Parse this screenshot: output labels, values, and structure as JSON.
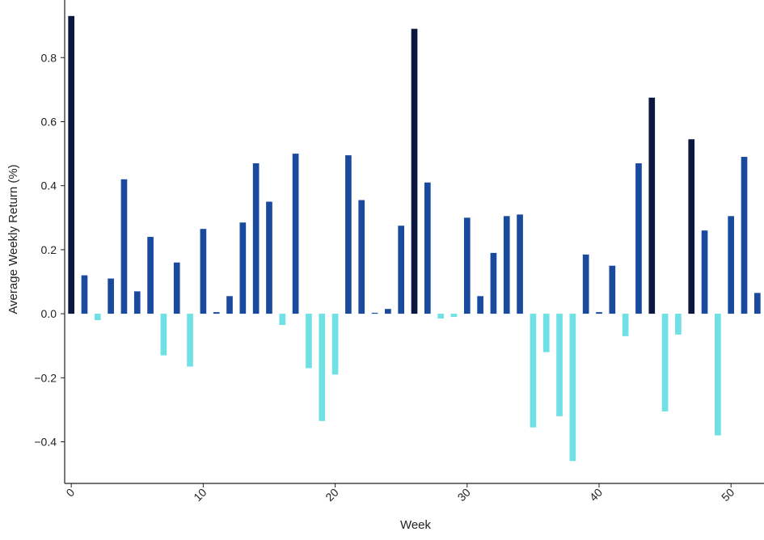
{
  "chart_data": {
    "type": "bar",
    "title": "",
    "xlabel": "Week",
    "ylabel": "Average Weekly Return (%)",
    "ylim": [
      -0.53,
      0.98
    ],
    "xlim": [
      -0.5,
      52.5
    ],
    "x": [
      0,
      1,
      2,
      3,
      4,
      5,
      6,
      7,
      8,
      9,
      10,
      11,
      12,
      13,
      14,
      15,
      16,
      17,
      18,
      19,
      20,
      21,
      22,
      23,
      24,
      25,
      26,
      27,
      28,
      29,
      30,
      31,
      32,
      33,
      34,
      35,
      36,
      37,
      38,
      39,
      40,
      41,
      42,
      43,
      44,
      45,
      46,
      47,
      48,
      49,
      50,
      51,
      52
    ],
    "values": [
      0.93,
      0.12,
      -0.02,
      0.11,
      0.42,
      0.07,
      0.24,
      -0.13,
      0.16,
      -0.165,
      0.265,
      0.005,
      0.055,
      0.285,
      0.47,
      0.35,
      -0.035,
      0.5,
      -0.17,
      -0.335,
      -0.19,
      0.495,
      0.355,
      0.003,
      0.015,
      0.275,
      0.89,
      0.41,
      -0.015,
      -0.01,
      0.3,
      0.055,
      0.19,
      0.305,
      0.31,
      -0.355,
      -0.12,
      -0.32,
      -0.46,
      0.185,
      0.005,
      0.15,
      -0.07,
      0.47,
      0.675,
      -0.305,
      -0.065,
      0.545,
      0.26,
      -0.38,
      0.305,
      0.49,
      0.065
    ],
    "x_ticks": [
      0,
      10,
      20,
      30,
      40,
      50
    ],
    "y_ticks": [
      -0.4,
      -0.2,
      0.0,
      0.2,
      0.4,
      0.6,
      0.8
    ],
    "y_tick_labels": [
      "−0.4",
      "−0.2",
      "0.0",
      "0.2",
      "0.4",
      "0.6",
      "0.8"
    ],
    "colors": {
      "high_positive": "#0c1740",
      "positive": "#1a4a9e",
      "negative": "#6fe0e3",
      "axis": "#222222"
    },
    "color_rule": "dark navy for values above 0.54, blue for other non-negative values, cyan for negative values",
    "grid": false,
    "legend": "none"
  }
}
